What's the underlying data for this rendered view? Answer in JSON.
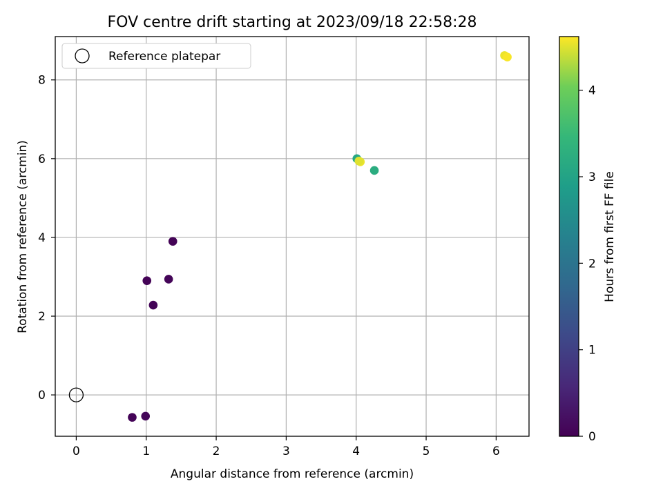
{
  "chart_data": {
    "type": "scatter",
    "title": "FOV centre drift starting at 2023/09/18 22:58:28",
    "xlabel": "Angular distance from reference (arcmin)",
    "ylabel": "Rotation from reference (arcmin)",
    "xlim": [
      -0.3,
      6.47
    ],
    "ylim": [
      -1.05,
      9.1
    ],
    "xticks": [
      0,
      1,
      2,
      3,
      4,
      5,
      6
    ],
    "yticks": [
      0,
      2,
      4,
      6,
      8
    ],
    "grid": true,
    "legend": {
      "position": "top-left",
      "entries": [
        "Reference platepar"
      ]
    },
    "reference_point": {
      "x": 0,
      "y": 0
    },
    "colorbar": {
      "label": "Hours from first FF file",
      "range": [
        0,
        4.62
      ],
      "ticks": [
        0,
        1,
        2,
        3,
        4
      ],
      "colormap": "viridis"
    },
    "points": [
      {
        "x": 0.8,
        "y": -0.57,
        "hours": 0.05
      },
      {
        "x": 0.99,
        "y": -0.54,
        "hours": 0.07
      },
      {
        "x": 1.01,
        "y": 2.9,
        "hours": 0.03
      },
      {
        "x": 1.1,
        "y": 2.28,
        "hours": 0.05
      },
      {
        "x": 1.32,
        "y": 2.94,
        "hours": 0.06
      },
      {
        "x": 1.38,
        "y": 3.9,
        "hours": 0.04
      },
      {
        "x": 4.01,
        "y": 6.0,
        "hours": 3.1
      },
      {
        "x": 4.26,
        "y": 5.7,
        "hours": 3.2
      },
      {
        "x": 4.06,
        "y": 5.92,
        "hours": 4.55
      },
      {
        "x": 4.04,
        "y": 5.94,
        "hours": 4.5
      },
      {
        "x": 6.12,
        "y": 8.62,
        "hours": 4.55
      },
      {
        "x": 6.16,
        "y": 8.58,
        "hours": 4.6
      }
    ]
  }
}
